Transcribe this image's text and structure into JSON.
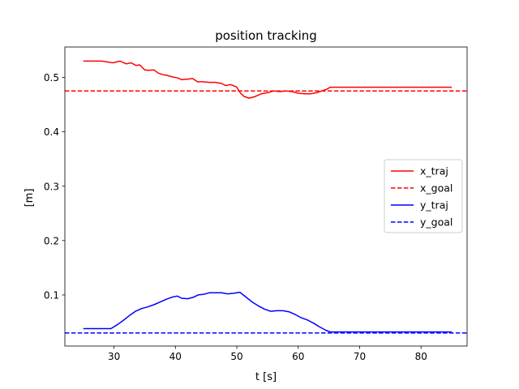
{
  "chart_data": {
    "type": "line",
    "title": "position tracking",
    "xlabel": "t [s]",
    "ylabel": "[m]",
    "xlim": [
      22.0,
      87.5
    ],
    "ylim": [
      0.006,
      0.556
    ],
    "xticks": [
      30,
      40,
      50,
      60,
      70,
      80
    ],
    "yticks": [
      0.1,
      0.2,
      0.3,
      0.4,
      0.5
    ],
    "xtick_labels": [
      "30",
      "40",
      "50",
      "60",
      "70",
      "80"
    ],
    "ytick_labels": [
      "0.1",
      "0.2",
      "0.3",
      "0.4",
      "0.5"
    ],
    "grid": false,
    "legend_position": "center-right",
    "series": [
      {
        "name": "x_traj",
        "style": "solid",
        "color": "#ff0000",
        "x": [
          25,
          28,
          29.8,
          31,
          32,
          32.8,
          33.6,
          34.2,
          35,
          35.6,
          36.5,
          37.2,
          38,
          38.6,
          39.5,
          40.4,
          41,
          42,
          42.8,
          43.6,
          44.5,
          45.5,
          46.5,
          47.5,
          48.2,
          49,
          50,
          50.6,
          51.2,
          52,
          53,
          54,
          55,
          56,
          57,
          58,
          59,
          60,
          61,
          62,
          63,
          64,
          64.6,
          65.2,
          68,
          70,
          75,
          80,
          85
        ],
        "y": [
          0.53,
          0.53,
          0.527,
          0.53,
          0.525,
          0.527,
          0.522,
          0.523,
          0.514,
          0.513,
          0.514,
          0.508,
          0.505,
          0.504,
          0.501,
          0.499,
          0.496,
          0.497,
          0.498,
          0.492,
          0.492,
          0.491,
          0.491,
          0.489,
          0.485,
          0.487,
          0.482,
          0.471,
          0.465,
          0.462,
          0.465,
          0.47,
          0.472,
          0.475,
          0.474,
          0.475,
          0.474,
          0.471,
          0.47,
          0.47,
          0.472,
          0.476,
          0.478,
          0.482,
          0.482,
          0.482,
          0.482,
          0.482,
          0.482
        ]
      },
      {
        "name": "x_goal",
        "style": "dashed",
        "color": "#ff0000",
        "x": [
          22.0,
          87.5
        ],
        "y": [
          0.475,
          0.475
        ]
      },
      {
        "name": "y_traj",
        "style": "solid",
        "color": "#0000ff",
        "x": [
          25,
          29.5,
          30.5,
          31.5,
          32.5,
          33.5,
          34.5,
          35.5,
          36.5,
          37.5,
          38.5,
          39.5,
          40.3,
          41,
          42,
          43,
          43.7,
          44.5,
          45.5,
          46.5,
          47.5,
          48.5,
          49.5,
          50.5,
          51.5,
          52.5,
          53.5,
          54.5,
          55.5,
          56.5,
          57.5,
          58.5,
          59.5,
          60.5,
          61.5,
          62.5,
          63.5,
          64.5,
          65.2,
          70,
          75,
          80,
          85
        ],
        "y": [
          0.038,
          0.038,
          0.045,
          0.053,
          0.062,
          0.07,
          0.075,
          0.078,
          0.082,
          0.087,
          0.092,
          0.096,
          0.098,
          0.094,
          0.093,
          0.096,
          0.1,
          0.101,
          0.104,
          0.104,
          0.104,
          0.102,
          0.103,
          0.105,
          0.096,
          0.087,
          0.08,
          0.074,
          0.07,
          0.071,
          0.071,
          0.069,
          0.064,
          0.058,
          0.054,
          0.048,
          0.041,
          0.035,
          0.032,
          0.032,
          0.032,
          0.032,
          0.032
        ]
      },
      {
        "name": "y_goal",
        "style": "dashed",
        "color": "#0000ff",
        "x": [
          22.0,
          87.5
        ],
        "y": [
          0.03,
          0.03
        ]
      }
    ]
  }
}
